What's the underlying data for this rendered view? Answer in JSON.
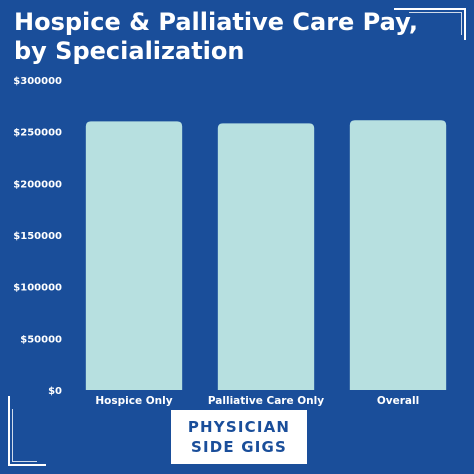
{
  "chart_data": {
    "type": "bar",
    "title_line1": "Hospice & Palliative Care Pay,",
    "title_line2": "by Specialization",
    "categories": [
      "Hospice Only",
      "Palliative Care Only",
      "Overall"
    ],
    "values": [
      260000,
      258000,
      261000
    ],
    "ylim": [
      0,
      300000
    ],
    "yticks": [
      0,
      50000,
      100000,
      150000,
      200000,
      250000,
      300000
    ],
    "ytick_labels": [
      "$0",
      "$50000",
      "$100000",
      "$150000",
      "$200000",
      "$250000",
      "$300000"
    ],
    "grid": false,
    "bar_color": "#b7e0e0",
    "background_color": "#1a4e9a"
  },
  "logo": {
    "line1": "PHYSICIAN",
    "line2": "SIDE GIGS"
  }
}
